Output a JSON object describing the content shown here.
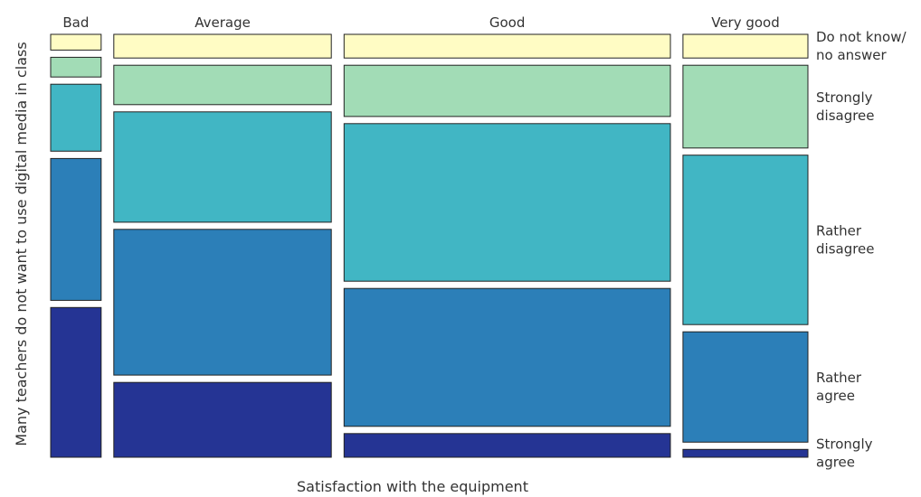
{
  "chart_data": {
    "type": "mosaic",
    "title": "",
    "xlabel": "Satisfaction with the equipment",
    "ylabel": "Many teachers do not want to use digital media in class",
    "columns": [
      "Bad",
      "Average",
      "Good",
      "Very good"
    ],
    "column_widths": [
      0.072,
      0.31,
      0.465,
      0.178
    ],
    "rows": [
      {
        "label": "Do not know/ no answer",
        "label_lines": [
          "Do not know/",
          "no answer"
        ],
        "color": "#FFFCC4"
      },
      {
        "label": "Strongly disagree",
        "label_lines": [
          "Strongly",
          "disagree"
        ],
        "color": "#A2DCB6"
      },
      {
        "label": "Rather disagree",
        "label_lines": [
          "Rather",
          "disagree"
        ],
        "color": "#41B6C4"
      },
      {
        "label": "Rather agree",
        "label_lines": [
          "Rather",
          "agree"
        ],
        "color": "#2C7FB8"
      },
      {
        "label": "Strongly agree",
        "label_lines": [
          "Strongly",
          "agree"
        ],
        "color": "#253494"
      }
    ],
    "proportions": [
      [
        0.04,
        0.05,
        0.17,
        0.36,
        0.38
      ],
      [
        0.06,
        0.1,
        0.28,
        0.37,
        0.19
      ],
      [
        0.06,
        0.13,
        0.4,
        0.35,
        0.06
      ],
      [
        0.06,
        0.21,
        0.43,
        0.28,
        0.02
      ]
    ],
    "legend_placement": "right",
    "grid": false
  }
}
